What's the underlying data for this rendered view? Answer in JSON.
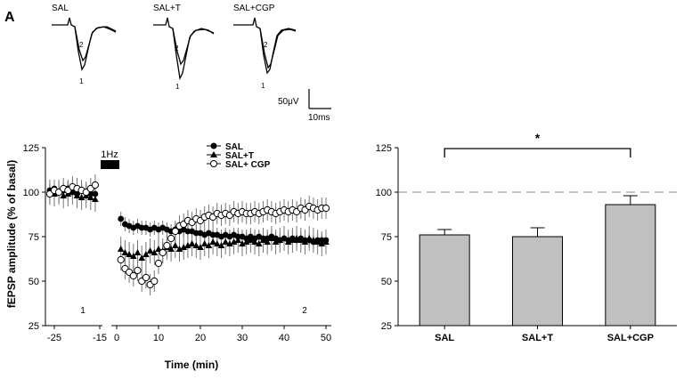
{
  "panel_label": "A",
  "traces": {
    "labels": [
      "SAL",
      "SAL+T",
      "SAL+CGP"
    ],
    "marker1": "1",
    "marker2": "2",
    "scale_voltage": "50μV",
    "scale_time": "10ms"
  },
  "chart_data": [
    {
      "type": "scatter",
      "ylabel": "fEPSP amplitude (% of basal)",
      "xlabel": "Time (min)",
      "ylim": [
        25,
        125
      ],
      "yticks": [
        "25",
        "50",
        "75",
        "100",
        "125"
      ],
      "xticks": [
        "-25",
        "-15",
        "0",
        "10",
        "20",
        "30",
        "40",
        "50"
      ],
      "xtick_values": [
        -25,
        -15,
        0,
        10,
        20,
        30,
        40,
        50
      ],
      "stim_label": "1Hz",
      "period_labels": [
        "1",
        "2"
      ],
      "series": [
        {
          "name": "SAL",
          "marker": "filled-circle",
          "pre_x": [
            -26,
            -25,
            -24,
            -23,
            -22,
            -21,
            -20,
            -19,
            -18,
            -17,
            -16
          ],
          "pre_y": [
            101,
            102,
            100,
            101,
            102,
            100,
            99,
            101,
            100,
            99,
            99
          ],
          "post_x": [
            1,
            2,
            3,
            4,
            5,
            6,
            7,
            8,
            9,
            10,
            11,
            12,
            13,
            14,
            15,
            16,
            17,
            18,
            19,
            20,
            21,
            22,
            23,
            24,
            25,
            26,
            27,
            28,
            29,
            30,
            31,
            32,
            33,
            34,
            35,
            36,
            37,
            38,
            39,
            40,
            41,
            42,
            43,
            44,
            45,
            46,
            47,
            48,
            49,
            50
          ],
          "post_y": [
            85,
            82,
            81,
            80,
            81,
            80,
            80,
            79,
            80,
            79,
            80,
            79,
            78,
            79,
            78,
            79,
            78,
            78,
            77,
            77,
            76,
            77,
            76,
            76,
            75,
            76,
            75,
            76,
            75,
            75,
            74,
            75,
            74,
            75,
            74,
            74,
            75,
            74,
            73,
            74,
            73,
            74,
            73,
            74,
            73,
            73,
            72,
            73,
            73,
            73
          ],
          "error": 4
        },
        {
          "name": "SAL+T",
          "marker": "filled-triangle",
          "pre_x": [
            -26,
            -25,
            -24,
            -23,
            -22,
            -21,
            -20,
            -19,
            -18,
            -17,
            -16
          ],
          "pre_y": [
            100,
            99,
            100,
            98,
            99,
            100,
            98,
            97,
            98,
            97,
            96
          ],
          "post_x": [
            1,
            2,
            3,
            4,
            5,
            6,
            7,
            8,
            9,
            10,
            11,
            12,
            13,
            14,
            15,
            16,
            17,
            18,
            19,
            20,
            21,
            22,
            23,
            24,
            25,
            26,
            27,
            28,
            29,
            30,
            31,
            32,
            33,
            34,
            35,
            36,
            37,
            38,
            39,
            40,
            41,
            42,
            43,
            44,
            45,
            46,
            47,
            48,
            49,
            50
          ],
          "post_y": [
            68,
            66,
            65,
            64,
            66,
            63,
            65,
            67,
            66,
            68,
            67,
            69,
            68,
            70,
            68,
            69,
            70,
            71,
            70,
            69,
            71,
            70,
            72,
            71,
            70,
            72,
            71,
            72,
            73,
            71,
            72,
            73,
            72,
            71,
            73,
            72,
            74,
            72,
            73,
            74,
            72,
            73,
            74,
            73,
            72,
            74,
            73,
            72,
            71,
            72
          ],
          "error": 7
        },
        {
          "name": "SAL+ CGP",
          "marker": "open-circle",
          "pre_x": [
            -26,
            -25,
            -24,
            -23,
            -22,
            -21,
            -20,
            -19,
            -18,
            -17,
            -16
          ],
          "pre_y": [
            99,
            101,
            100,
            102,
            101,
            103,
            102,
            101,
            100,
            102,
            104
          ],
          "post_x": [
            1,
            2,
            3,
            4,
            5,
            6,
            7,
            8,
            9,
            10,
            11,
            12,
            13,
            14,
            15,
            16,
            17,
            18,
            19,
            20,
            21,
            22,
            23,
            24,
            25,
            26,
            27,
            28,
            29,
            30,
            31,
            32,
            33,
            34,
            35,
            36,
            37,
            38,
            39,
            40,
            41,
            42,
            43,
            44,
            45,
            46,
            47,
            48,
            49,
            50
          ],
          "post_y": [
            62,
            57,
            55,
            53,
            56,
            50,
            52,
            48,
            50,
            60,
            66,
            70,
            74,
            78,
            81,
            82,
            84,
            83,
            85,
            84,
            86,
            87,
            86,
            88,
            87,
            88,
            87,
            89,
            88,
            89,
            88,
            88,
            89,
            88,
            89,
            90,
            89,
            88,
            89,
            90,
            89,
            90,
            89,
            91,
            90,
            92,
            91,
            90,
            91,
            91
          ],
          "error": 6
        }
      ]
    },
    {
      "type": "bar",
      "categories": [
        "SAL",
        "SAL+T",
        "SAL+CGP"
      ],
      "values": [
        76,
        75,
        93
      ],
      "errors": [
        3,
        5,
        5
      ],
      "ylim": [
        25,
        125
      ],
      "yticks": [
        "25",
        "50",
        "75",
        "100",
        "125"
      ],
      "reference_line": 100,
      "significance": {
        "between": [
          "SAL",
          "SAL+CGP"
        ],
        "label": "*"
      },
      "bar_color": "#c0c0c0"
    }
  ]
}
